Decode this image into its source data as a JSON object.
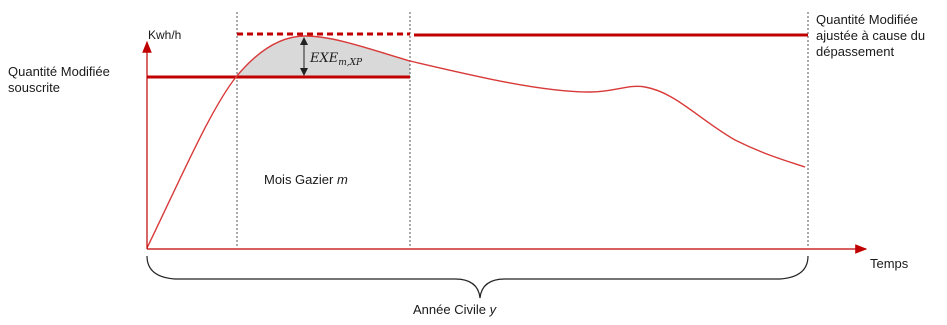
{
  "labels": {
    "y_axis": "Kwh/h",
    "x_axis": "Temps",
    "subscribed_line": "Quantité Modifiée souscrite",
    "adjusted_line": "Quantité Modifiée ajustée à cause du dépassement",
    "month_prefix": "Mois Gazier",
    "month_var": "m",
    "year_prefix": "Année Civile",
    "year_var": "y",
    "excess_main": "EXE",
    "excess_sub": "m,XP"
  },
  "colors": {
    "accent": "#c00000",
    "curve": "#d83a3a",
    "fill": "#d9d9d9",
    "axis": "#c00000"
  }
}
